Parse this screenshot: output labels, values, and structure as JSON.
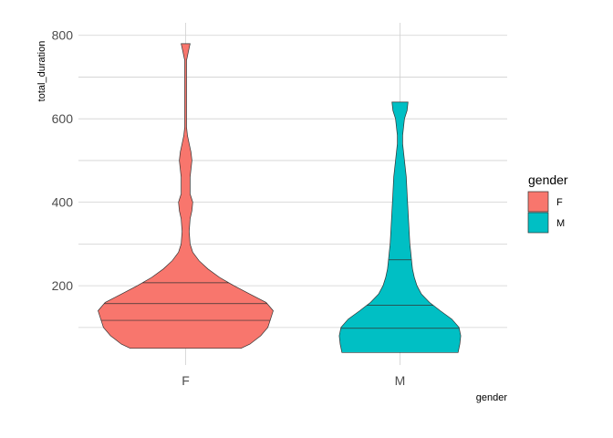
{
  "chart_data": {
    "type": "violin",
    "xlabel": "gender",
    "ylabel": "total_duration",
    "categories": [
      "F",
      "M"
    ],
    "ylim": [
      10,
      830
    ],
    "y_ticks": [
      200,
      400,
      600,
      800
    ],
    "grid": true,
    "legend": {
      "title": "gender",
      "placement": "right",
      "entries": [
        {
          "label": "F",
          "color": "#F8766D"
        },
        {
          "label": "M",
          "color": "#00BFC4"
        }
      ]
    },
    "series": [
      {
        "category": "F",
        "color": "#F8766D",
        "min": 50,
        "max": 780,
        "quantiles": [
          117,
          157,
          207
        ],
        "density_profile": [
          [
            50,
            62
          ],
          [
            60,
            72
          ],
          [
            80,
            84
          ],
          [
            100,
            92
          ],
          [
            120,
            95
          ],
          [
            140,
            98
          ],
          [
            160,
            90
          ],
          [
            180,
            72
          ],
          [
            200,
            54
          ],
          [
            220,
            38
          ],
          [
            240,
            25
          ],
          [
            260,
            15
          ],
          [
            280,
            8
          ],
          [
            300,
            5
          ],
          [
            330,
            4
          ],
          [
            360,
            5
          ],
          [
            380,
            7
          ],
          [
            400,
            8
          ],
          [
            420,
            5
          ],
          [
            440,
            5
          ],
          [
            460,
            5
          ],
          [
            480,
            6
          ],
          [
            500,
            7
          ],
          [
            520,
            6
          ],
          [
            540,
            4
          ],
          [
            560,
            2
          ],
          [
            580,
            1
          ],
          [
            620,
            1
          ],
          [
            680,
            1
          ],
          [
            720,
            1
          ],
          [
            740,
            1
          ],
          [
            750,
            2
          ],
          [
            760,
            3
          ],
          [
            780,
            5
          ]
        ]
      },
      {
        "category": "M",
        "color": "#00BFC4",
        "min": 40,
        "max": 640,
        "quantiles": [
          98,
          153,
          262
        ],
        "density_profile": [
          [
            40,
            65
          ],
          [
            60,
            67
          ],
          [
            80,
            68
          ],
          [
            100,
            66
          ],
          [
            120,
            58
          ],
          [
            140,
            45
          ],
          [
            160,
            33
          ],
          [
            180,
            24
          ],
          [
            200,
            19
          ],
          [
            220,
            16
          ],
          [
            240,
            14
          ],
          [
            260,
            13
          ],
          [
            280,
            12
          ],
          [
            300,
            11
          ],
          [
            340,
            10
          ],
          [
            380,
            9
          ],
          [
            420,
            8
          ],
          [
            460,
            7
          ],
          [
            500,
            5
          ],
          [
            520,
            4
          ],
          [
            540,
            3
          ],
          [
            560,
            3
          ],
          [
            580,
            4
          ],
          [
            600,
            5
          ],
          [
            620,
            8
          ],
          [
            640,
            9
          ]
        ]
      }
    ]
  }
}
